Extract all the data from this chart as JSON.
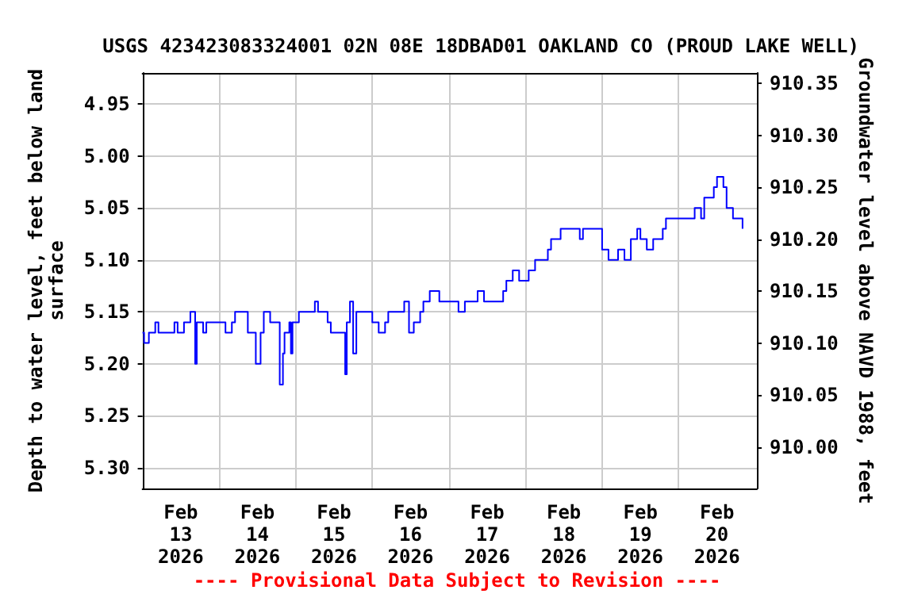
{
  "chart_data": {
    "type": "step",
    "title": "USGS 423423083324001 02N 08E 18DBAD01 OAKLAND CO (PROUD LAKE WELL)",
    "ylabel": "Depth to water level, feet below land\nsurface",
    "y2label": "Groundwater level above NAVD 1988, feet",
    "annotations": [
      "---- Provisional Data Subject to Revision ----"
    ],
    "x": [
      "2026-02-12T12:00",
      "2026-02-12T12:30",
      "2026-02-12T14:00",
      "2026-02-12T16:00",
      "2026-02-12T17:00",
      "2026-02-12T22:00",
      "2026-02-12T23:00",
      "2026-02-13T01:00",
      "2026-02-13T03:00",
      "2026-02-13T04:00",
      "2026-02-13T04:30",
      "2026-02-13T05:00",
      "2026-02-13T07:00",
      "2026-02-13T08:00",
      "2026-02-13T12:00",
      "2026-02-13T14:00",
      "2026-02-13T16:00",
      "2026-02-13T17:00",
      "2026-02-13T20:00",
      "2026-02-13T21:00",
      "2026-02-13T23:00",
      "2026-02-13T23:30",
      "2026-02-14T01:00",
      "2026-02-14T02:00",
      "2026-02-14T04:00",
      "2026-02-14T06:00",
      "2026-02-14T07:00",
      "2026-02-14T08:00",
      "2026-02-14T08:30",
      "2026-02-14T10:00",
      "2026-02-14T10:30",
      "2026-02-14T11:00",
      "2026-02-14T13:00",
      "2026-02-14T17:00",
      "2026-02-14T18:00",
      "2026-02-14T19:00",
      "2026-02-14T22:00",
      "2026-02-14T23:00",
      "2026-02-15T03:30",
      "2026-02-15T04:00",
      "2026-02-15T05:00",
      "2026-02-15T06:00",
      "2026-02-15T07:00",
      "2026-02-15T11:00",
      "2026-02-15T12:00",
      "2026-02-15T14:00",
      "2026-02-15T16:00",
      "2026-02-15T17:00",
      "2026-02-15T21:00",
      "2026-02-15T22:00",
      "2026-02-15T23:30",
      "2026-02-16T01:00",
      "2026-02-16T03:00",
      "2026-02-16T04:00",
      "2026-02-16T06:00",
      "2026-02-16T08:00",
      "2026-02-16T09:00",
      "2026-02-16T13:00",
      "2026-02-16T15:00",
      "2026-02-16T17:00",
      "2026-02-16T21:00",
      "2026-02-16T23:00",
      "2026-02-17T04:00",
      "2026-02-17T05:00",
      "2026-02-17T06:00",
      "2026-02-17T08:00",
      "2026-02-17T10:00",
      "2026-02-17T13:00",
      "2026-02-17T15:00",
      "2026-02-17T18:00",
      "2026-02-17T19:00",
      "2026-02-17T20:00",
      "2026-02-17T23:00",
      "2026-02-18T04:00",
      "2026-02-18T05:00",
      "2026-02-18T06:00",
      "2026-02-18T11:00",
      "2026-02-18T12:00",
      "2026-02-18T14:00",
      "2026-02-18T17:00",
      "2026-02-18T19:00",
      "2026-02-18T21:00",
      "2026-02-18T23:00",
      "2026-02-19T00:00",
      "2026-02-19T02:00",
      "2026-02-19T04:00",
      "2026-02-19T07:00",
      "2026-02-19T08:00",
      "2026-02-19T16:00",
      "2026-02-19T17:00",
      "2026-02-19T19:00",
      "2026-02-19T20:00",
      "2026-02-19T23:00",
      "2026-02-20T00:00",
      "2026-02-20T02:00",
      "2026-02-20T03:00",
      "2026-02-20T05:00",
      "2026-02-20T07:00",
      "2026-02-20T08:00"
    ],
    "series": [
      {
        "color": "#0000ff",
        "values": [
          5.17,
          5.18,
          5.17,
          5.16,
          5.17,
          5.16,
          5.17,
          5.16,
          5.15,
          5.15,
          5.2,
          5.16,
          5.17,
          5.16,
          5.16,
          5.17,
          5.16,
          5.15,
          5.15,
          5.17,
          5.17,
          5.2,
          5.17,
          5.15,
          5.16,
          5.16,
          5.22,
          5.19,
          5.17,
          5.16,
          5.19,
          5.16,
          5.15,
          5.15,
          5.14,
          5.15,
          5.16,
          5.17,
          5.21,
          5.16,
          5.14,
          5.19,
          5.15,
          5.15,
          5.16,
          5.17,
          5.16,
          5.15,
          5.15,
          5.14,
          5.17,
          5.16,
          5.15,
          5.14,
          5.13,
          5.13,
          5.14,
          5.14,
          5.15,
          5.14,
          5.13,
          5.14,
          5.14,
          5.13,
          5.12,
          5.11,
          5.12,
          5.11,
          5.1,
          5.1,
          5.09,
          5.08,
          5.07,
          5.07,
          5.08,
          5.07,
          5.07,
          5.09,
          5.1,
          5.09,
          5.1,
          5.08,
          5.07,
          5.08,
          5.09,
          5.08,
          5.07,
          5.06,
          5.06,
          5.05,
          5.06,
          5.04,
          5.03,
          5.02,
          5.03,
          5.05,
          5.06,
          5.06,
          5.07
        ]
      }
    ],
    "xlim": [
      "2026-02-12T12:00",
      "2026-02-20T12:30"
    ],
    "xticks": [
      {
        "value": "2026-02-13",
        "label": "Feb\n13\n2026"
      },
      {
        "value": "2026-02-13T12:00",
        "label": null
      },
      {
        "value": "2026-02-14",
        "label": "Feb\n14\n2026"
      },
      {
        "value": "2026-02-14T12:00",
        "label": null
      },
      {
        "value": "2026-02-15",
        "label": "Feb\n15\n2026"
      },
      {
        "value": "2026-02-15T12:00",
        "label": null
      },
      {
        "value": "2026-02-16",
        "label": "Feb\n16\n2026"
      },
      {
        "value": "2026-02-16T12:00",
        "label": null
      },
      {
        "value": "2026-02-17",
        "label": "Feb\n17\n2026"
      },
      {
        "value": "2026-02-17T12:00",
        "label": null
      },
      {
        "value": "2026-02-18",
        "label": "Feb\n18\n2026"
      },
      {
        "value": "2026-02-18T12:00",
        "label": null
      },
      {
        "value": "2026-02-19",
        "label": "Feb\n19\n2026"
      },
      {
        "value": "2026-02-19T12:00",
        "label": null
      },
      {
        "value": "2026-02-20",
        "label": "Feb\n20\n2026"
      }
    ],
    "ylim": [
      5.32,
      4.92
    ],
    "yticks": [
      {
        "value": 4.95,
        "label": "4.95"
      },
      {
        "value": 5.0,
        "label": "5.00"
      },
      {
        "value": 5.05,
        "label": "5.05"
      },
      {
        "value": 5.1,
        "label": "5.10"
      },
      {
        "value": 5.15,
        "label": "5.15"
      },
      {
        "value": 5.2,
        "label": "5.20"
      },
      {
        "value": 5.25,
        "label": "5.25"
      },
      {
        "value": 5.3,
        "label": "5.30"
      }
    ],
    "y2lim": [
      909.96,
      910.36
    ],
    "y2ticks": [
      {
        "value": 910.0,
        "label": "910.00"
      },
      {
        "value": 910.05,
        "label": "910.05"
      },
      {
        "value": 910.1,
        "label": "910.10"
      },
      {
        "value": 910.15,
        "label": "910.15"
      },
      {
        "value": 910.2,
        "label": "910.20"
      },
      {
        "value": 910.25,
        "label": "910.25"
      },
      {
        "value": 910.3,
        "label": "910.30"
      },
      {
        "value": 910.35,
        "label": "910.35"
      }
    ],
    "grid": true,
    "marker": "none",
    "line_style": "solid"
  }
}
